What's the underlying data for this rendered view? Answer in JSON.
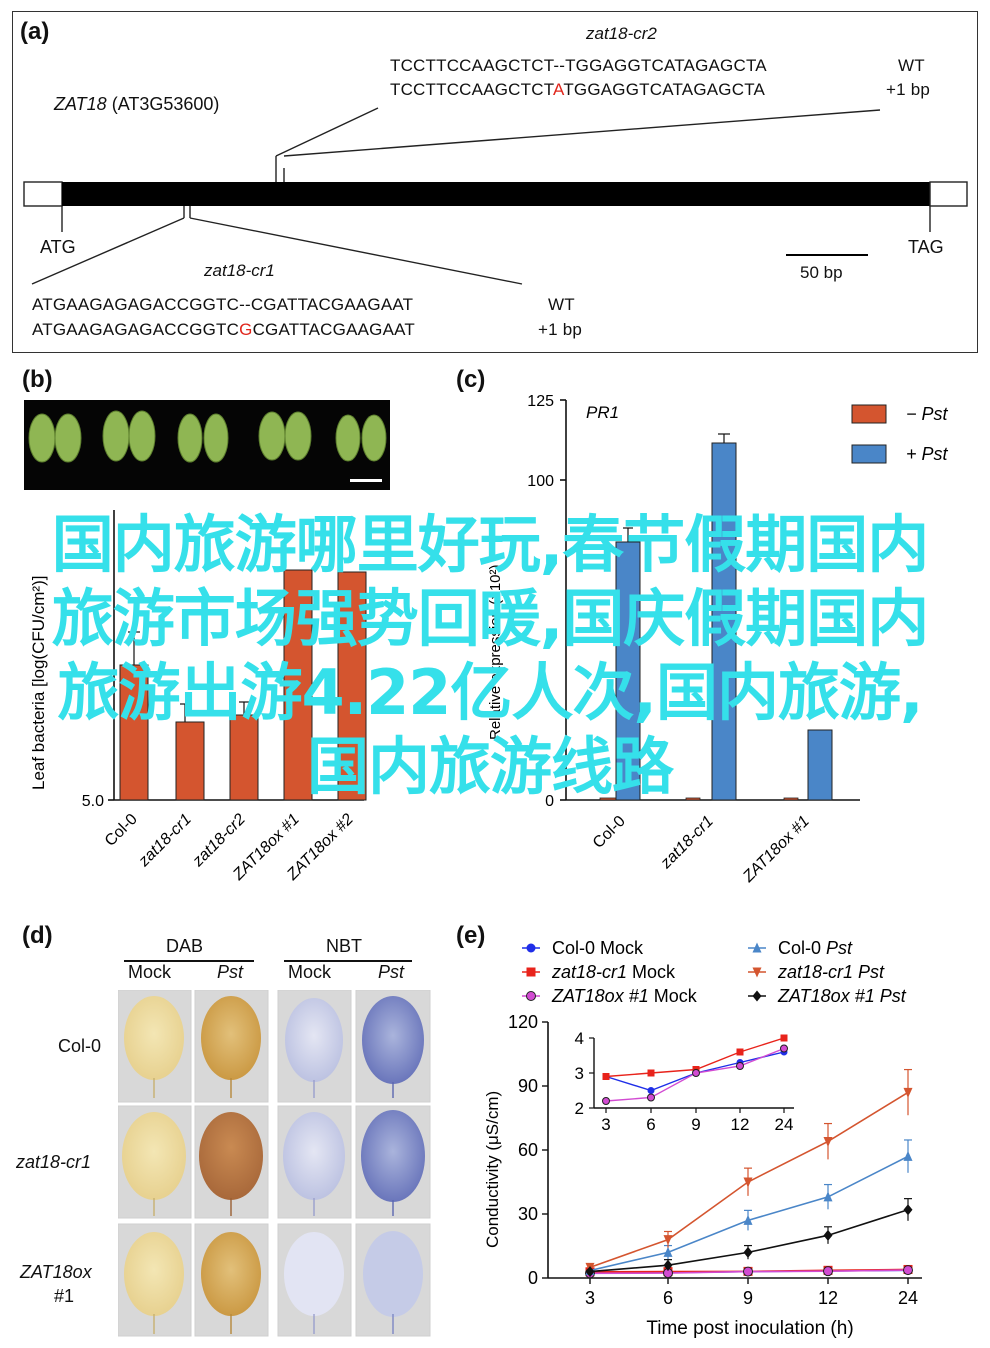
{
  "panel_a": {
    "label": "(a)",
    "gene_name": "ZAT18",
    "gene_id": "(AT3G53600)",
    "start_codon": "ATG",
    "stop_codon": "TAG",
    "scale_bar": "50 bp",
    "cr2": {
      "name": "zat18-cr2",
      "wt_seq": "TCCTTCCAAGCTCT--TGGAGGTCATAGAGCTA",
      "mut_seq_prefix": "TCCTTCCAAGCTCT",
      "mut_insert": "A",
      "mut_seq_suffix": "TGGAGGTCATAGAGCTA",
      "wt_label": "WT",
      "mut_label": "+1 bp"
    },
    "cr1": {
      "name": "zat18-cr1",
      "wt_seq": "ATGAAGAGAGACCGGTC--CGATTACGAAGAAT",
      "mut_seq_prefix": "ATGAAGAGAGACCGGTC",
      "mut_insert": "G",
      "mut_seq_suffix": "CGATTACGAAGAAT",
      "wt_label": "WT",
      "mut_label": "+1 bp"
    }
  },
  "panel_b": {
    "label": "(b)",
    "ylabel": "Leaf bacteria [log(CFU/cm²)]",
    "yticks": [
      "5.0"
    ],
    "categories": [
      "Col-0",
      "zat18-cr1",
      "zat18-cr2",
      "ZAT18ox #1",
      "ZAT18ox #2"
    ]
  },
  "panel_c": {
    "label": "(c)",
    "gene": "PR1",
    "ylabel": "Relative expression (×10²)",
    "yticks": [
      "125",
      "100",
      "0"
    ],
    "legend": [
      {
        "label": "− Pst",
        "color": "#d4552f"
      },
      {
        "label": "+ Pst",
        "color": "#4a86c8"
      }
    ],
    "categories": [
      "Col-0",
      "zat18-cr1",
      "ZAT18ox #1"
    ]
  },
  "panel_d": {
    "label": "(d)",
    "groups": [
      "DAB",
      "NBT"
    ],
    "columns": [
      "Mock",
      "Pst",
      "Mock",
      "Pst"
    ],
    "rows": [
      "Col-0",
      "zat18-cr1",
      "ZAT18ox",
      "#1"
    ]
  },
  "panel_e": {
    "label": "(e)",
    "ylabel": "Conductivity (μS/cm)",
    "xlabel": "Time post inoculation (h)",
    "xticks": [
      "3",
      "6",
      "9",
      "12",
      "24"
    ],
    "yticks": [
      "0",
      "30",
      "60",
      "90",
      "120"
    ],
    "inset_yticks": [
      "2",
      "3",
      "4"
    ],
    "legend": [
      {
        "geno": "Col-0",
        "treat": "Mock",
        "color": "#1f2ee8",
        "marker": "circle"
      },
      {
        "geno": "Col-0",
        "treat": "Pst",
        "color": "#4a86c8",
        "marker": "triangle"
      },
      {
        "geno": "zat18-cr1",
        "treat": "Mock",
        "color": "#e8231b",
        "marker": "square"
      },
      {
        "geno": "zat18-cr1",
        "treat": "Pst",
        "color": "#d4552f",
        "marker": "triangle-down"
      },
      {
        "geno": "ZAT18ox #1",
        "treat": "Mock",
        "color": "#d24bd2",
        "marker": "circle-open"
      },
      {
        "geno": "ZAT18ox #1",
        "treat": "Pst",
        "color": "#111111",
        "marker": "diamond"
      }
    ]
  },
  "chart_data": [
    {
      "type": "line",
      "panel": "e",
      "xlabel": "Time post inoculation (h)",
      "ylabel": "Conductivity (μS/cm)",
      "x": [
        3,
        6,
        9,
        12,
        24
      ],
      "ylim": [
        0,
        120
      ],
      "series": [
        {
          "name": "Col-0 Mock",
          "values": [
            2.9,
            2.5,
            3.0,
            3.3,
            3.6
          ]
        },
        {
          "name": "zat18-cr1 Mock",
          "values": [
            2.9,
            3.0,
            3.1,
            3.6,
            4.0
          ]
        },
        {
          "name": "ZAT18ox #1 Mock",
          "values": [
            2.2,
            2.3,
            3.0,
            3.2,
            3.7
          ]
        },
        {
          "name": "Col-0 Pst",
          "values": [
            3.5,
            12,
            27,
            38,
            57
          ]
        },
        {
          "name": "zat18-cr1 Pst",
          "values": [
            5,
            18,
            45,
            64,
            87
          ]
        },
        {
          "name": "ZAT18ox #1 Pst",
          "values": [
            3,
            6,
            12,
            20,
            32
          ]
        }
      ]
    },
    {
      "type": "line",
      "panel": "e-inset",
      "x": [
        3,
        6,
        9,
        12,
        24
      ],
      "ylim": [
        2,
        4
      ],
      "series": [
        {
          "name": "Col-0 Mock",
          "values": [
            2.9,
            2.5,
            3.0,
            3.3,
            3.6
          ]
        },
        {
          "name": "zat18-cr1 Mock",
          "values": [
            2.9,
            3.0,
            3.1,
            3.6,
            4.0
          ]
        },
        {
          "name": "ZAT18ox #1 Mock",
          "values": [
            2.2,
            2.3,
            3.0,
            3.2,
            3.7
          ]
        }
      ]
    },
    {
      "type": "bar",
      "panel": "c",
      "categories": [
        "Col-0",
        "zat18-cr1",
        "ZAT18ox #1"
      ],
      "ylim": [
        0,
        125
      ],
      "series": [
        {
          "name": "− Pst",
          "values": [
            0.5,
            0.5,
            0.5
          ]
        },
        {
          "name": "+ Pst",
          "values": [
            81,
            111,
            27
          ]
        }
      ]
    },
    {
      "type": "bar",
      "panel": "b",
      "categories": [
        "Col-0",
        "zat18-cr1",
        "zat18-cr2",
        "ZAT18ox #1",
        "ZAT18ox #2"
      ],
      "values": [
        6.0,
        5.5,
        5.6,
        7.3,
        7.3
      ]
    }
  ],
  "overlay_text": "国内旅游哪里好玩,春节假期国内旅游市场强势回暖,国庆假期国内旅游出游4.22亿人次,国内旅游,国内旅游线路"
}
